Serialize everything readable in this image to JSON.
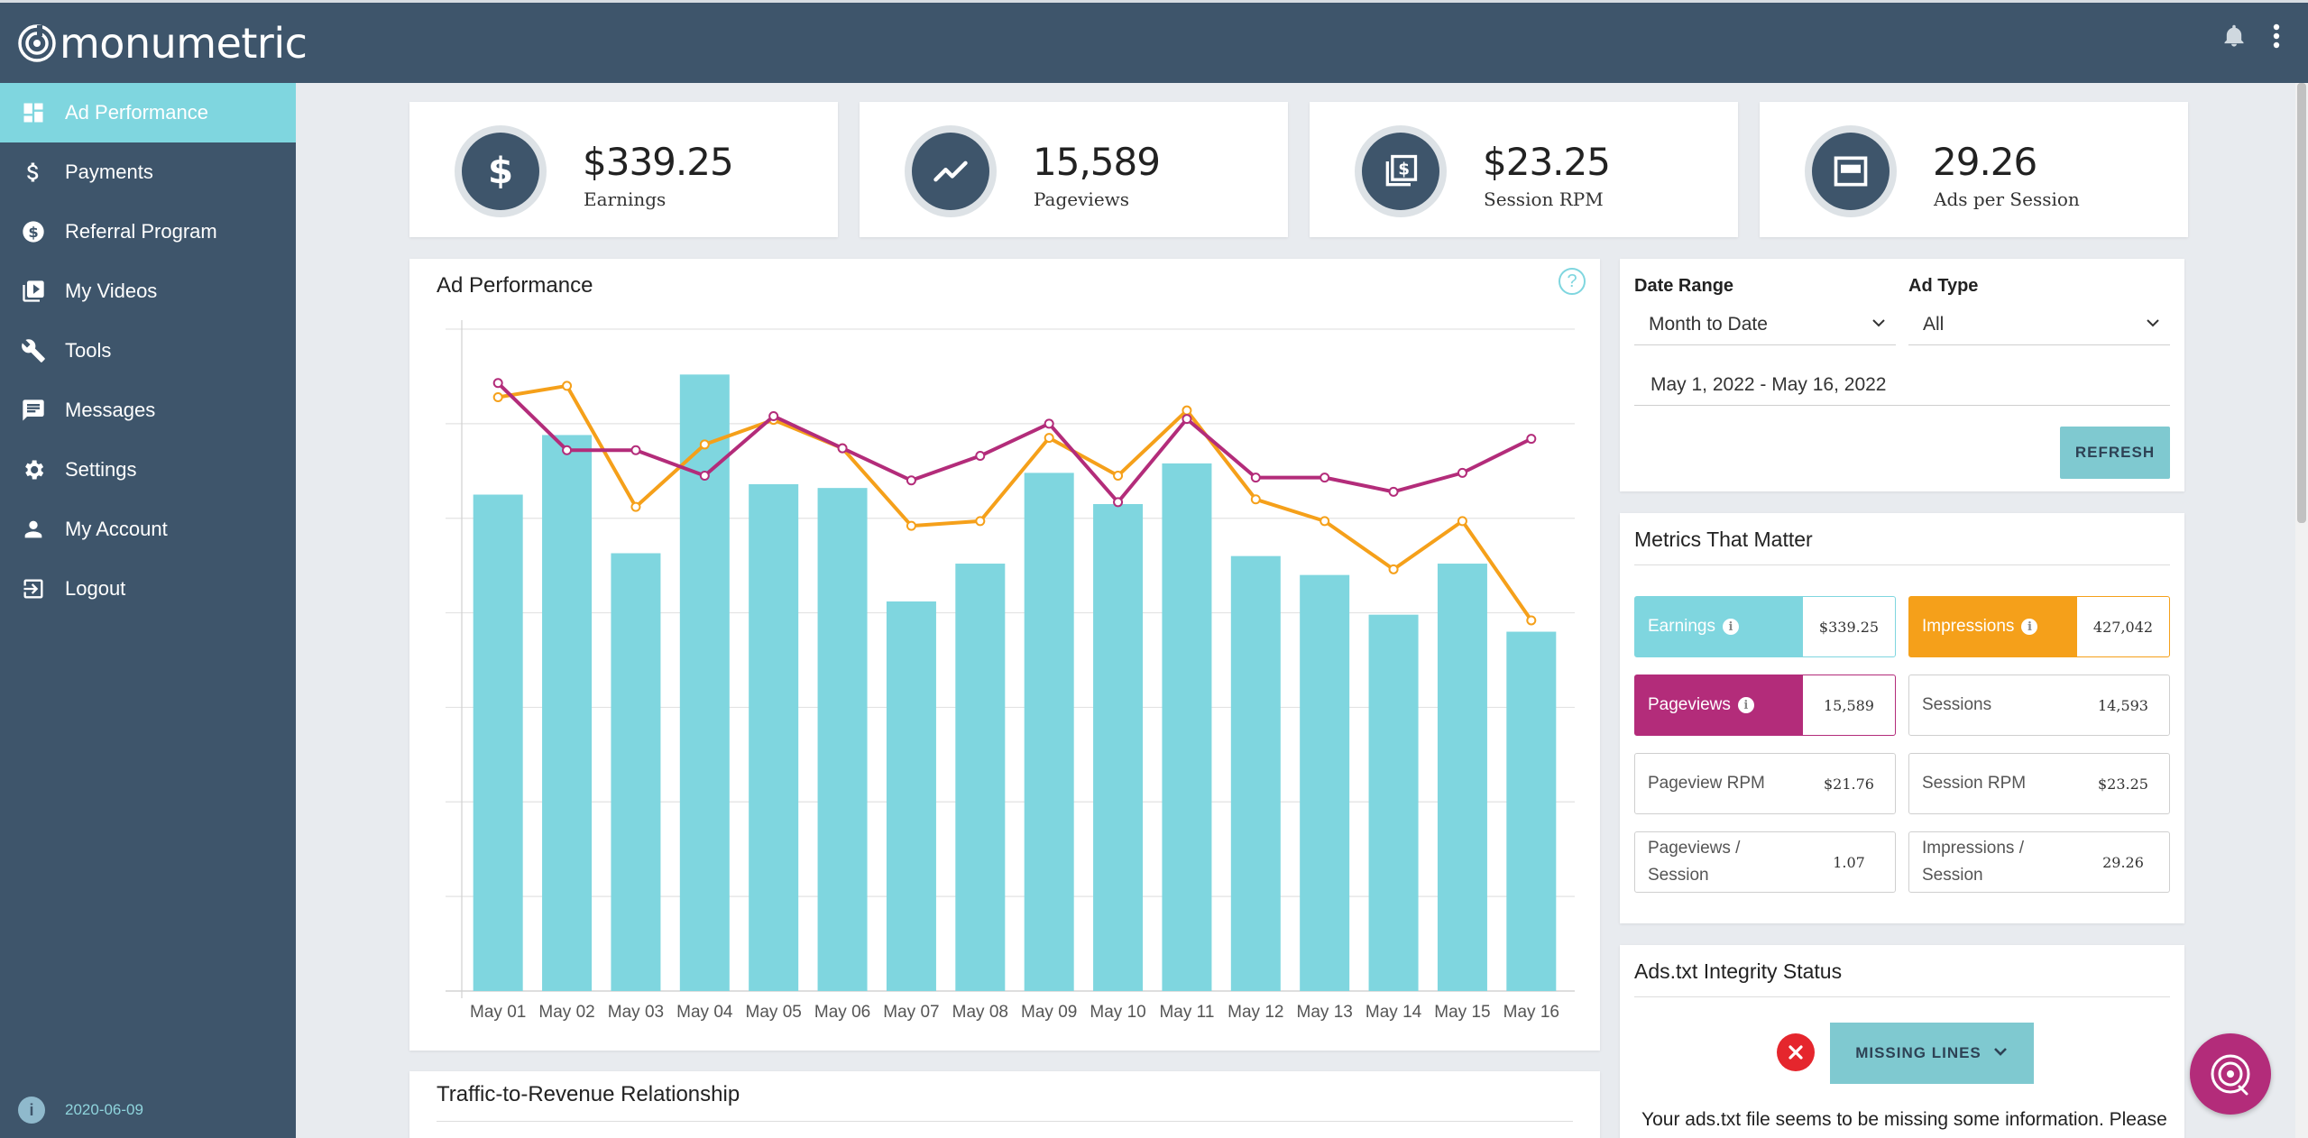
{
  "app": {
    "logo_text": "monumetric"
  },
  "sidebar": {
    "items": [
      {
        "label": "Ad Performance",
        "icon": "dashboard-icon",
        "active": true
      },
      {
        "label": "Payments",
        "icon": "dollar-icon"
      },
      {
        "label": "Referral Program",
        "icon": "dollar-circle-icon"
      },
      {
        "label": "My Videos",
        "icon": "video-library-icon"
      },
      {
        "label": "Tools",
        "icon": "wrench-icon"
      },
      {
        "label": "Messages",
        "icon": "message-icon"
      },
      {
        "label": "Settings",
        "icon": "gear-icon"
      },
      {
        "label": "My Account",
        "icon": "person-icon"
      },
      {
        "label": "Logout",
        "icon": "logout-icon"
      }
    ],
    "version": "2020-06-09"
  },
  "stats": [
    {
      "value": "$339.25",
      "label": "Earnings",
      "icon": "dollar-icon"
    },
    {
      "value": "15,589",
      "label": "Pageviews",
      "icon": "trend-icon"
    },
    {
      "value": "$23.25",
      "label": "Session RPM",
      "icon": "money-stack-icon"
    },
    {
      "value": "29.26",
      "label": "Ads per Session",
      "icon": "ad-window-icon"
    }
  ],
  "chart": {
    "title": "Ad Performance",
    "help": "?"
  },
  "chart_data": {
    "type": "bar",
    "categories": [
      "May 01",
      "May 02",
      "May 03",
      "May 04",
      "May 05",
      "May 06",
      "May 07",
      "May 08",
      "May 09",
      "May 10",
      "May 11",
      "May 12",
      "May 13",
      "May 14",
      "May 15",
      "May 16"
    ],
    "ylim": [
      0,
      7
    ],
    "grid": true,
    "series": [
      {
        "name": "Earnings",
        "kind": "bar",
        "color": "#7fd6df",
        "values": [
          5.25,
          5.88,
          4.63,
          6.52,
          5.36,
          5.32,
          4.12,
          4.52,
          5.48,
          5.15,
          5.58,
          4.6,
          4.4,
          3.98,
          4.52,
          3.8
        ]
      },
      {
        "name": "Impressions",
        "kind": "line",
        "color": "#f5a01a",
        "values": [
          6.28,
          6.4,
          5.12,
          5.78,
          6.04,
          5.74,
          4.92,
          4.97,
          5.85,
          5.45,
          6.14,
          5.2,
          4.97,
          4.46,
          4.97,
          3.92
        ]
      },
      {
        "name": "Pageviews",
        "kind": "line",
        "color": "#b32c7a",
        "values": [
          6.43,
          5.72,
          5.72,
          5.45,
          6.08,
          5.74,
          5.4,
          5.66,
          6.0,
          5.17,
          6.05,
          5.43,
          5.43,
          5.28,
          5.48,
          5.84
        ]
      }
    ]
  },
  "traffic": {
    "title": "Traffic-to-Revenue Relationship"
  },
  "filters": {
    "date_range_label": "Date Range",
    "date_range_value": "Month to Date",
    "ad_type_label": "Ad Type",
    "ad_type_value": "All",
    "date_text": "May 1, 2022 - May 16, 2022",
    "refresh_label": "REFRESH"
  },
  "metrics": {
    "title": "Metrics That Matter",
    "items": [
      {
        "label": "Earnings",
        "value": "$339.25",
        "style": "earn",
        "info": "i"
      },
      {
        "label": "Impressions",
        "value": "427,042",
        "style": "impr",
        "info": "i"
      },
      {
        "label": "Pageviews",
        "value": "15,589",
        "style": "pv",
        "info": "i"
      },
      {
        "label": "Sessions",
        "value": "14,593",
        "style": ""
      },
      {
        "label": "Pageview RPM",
        "value": "$21.76",
        "style": ""
      },
      {
        "label": "Session RPM",
        "value": "$23.25",
        "style": ""
      },
      {
        "label": "Pageviews / Session",
        "value": "1.07",
        "style": ""
      },
      {
        "label": "Impressions / Session",
        "value": "29.26",
        "style": ""
      }
    ]
  },
  "ads_txt": {
    "title": "Ads.txt Integrity Status",
    "button_label": "MISSING LINES",
    "message": "Your ads.txt file seems to be missing some information. Please"
  },
  "colors": {
    "navy": "#3e556b",
    "teal": "#7fd6df",
    "orange": "#f5a01a",
    "magenta": "#b32c7a"
  }
}
